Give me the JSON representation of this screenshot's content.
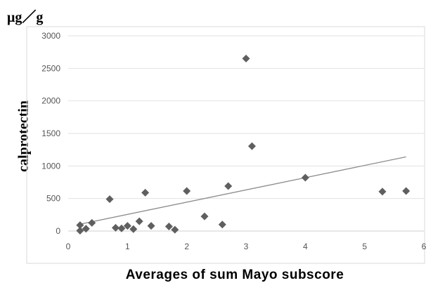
{
  "chart_data": {
    "type": "scatter",
    "title": "",
    "unit_label": "μg／g",
    "xlabel": "Averages of sum Mayo subscore",
    "ylabel": "calprotectin",
    "xlim": [
      0,
      6
    ],
    "ylim": [
      0,
      3000
    ],
    "xticks": [
      "0",
      "1",
      "2",
      "3",
      "4",
      "5",
      "6"
    ],
    "yticks": [
      "0",
      "500",
      "1000",
      "1500",
      "2000",
      "2500",
      "3000"
    ],
    "grid": "horizontal",
    "marker": "diamond",
    "marker_color": "#5f5f5f",
    "trendline_color": "#8c8c8c",
    "points": [
      {
        "x": 0.2,
        "y": 90
      },
      {
        "x": 0.2,
        "y": 5
      },
      {
        "x": 0.3,
        "y": 35
      },
      {
        "x": 0.4,
        "y": 125
      },
      {
        "x": 0.7,
        "y": 490
      },
      {
        "x": 0.8,
        "y": 50
      },
      {
        "x": 0.9,
        "y": 40
      },
      {
        "x": 1.0,
        "y": 80
      },
      {
        "x": 1.1,
        "y": 30
      },
      {
        "x": 1.2,
        "y": 150
      },
      {
        "x": 1.3,
        "y": 590
      },
      {
        "x": 1.4,
        "y": 80
      },
      {
        "x": 1.7,
        "y": 70
      },
      {
        "x": 1.8,
        "y": 20
      },
      {
        "x": 2.0,
        "y": 615
      },
      {
        "x": 2.3,
        "y": 225
      },
      {
        "x": 2.6,
        "y": 100
      },
      {
        "x": 2.7,
        "y": 690
      },
      {
        "x": 3.0,
        "y": 2650
      },
      {
        "x": 3.1,
        "y": 1305
      },
      {
        "x": 4.0,
        "y": 820
      },
      {
        "x": 5.3,
        "y": 605
      },
      {
        "x": 5.7,
        "y": 615
      }
    ],
    "trendline": {
      "x": [
        0.2,
        5.7
      ],
      "y": [
        105,
        1140
      ]
    }
  }
}
